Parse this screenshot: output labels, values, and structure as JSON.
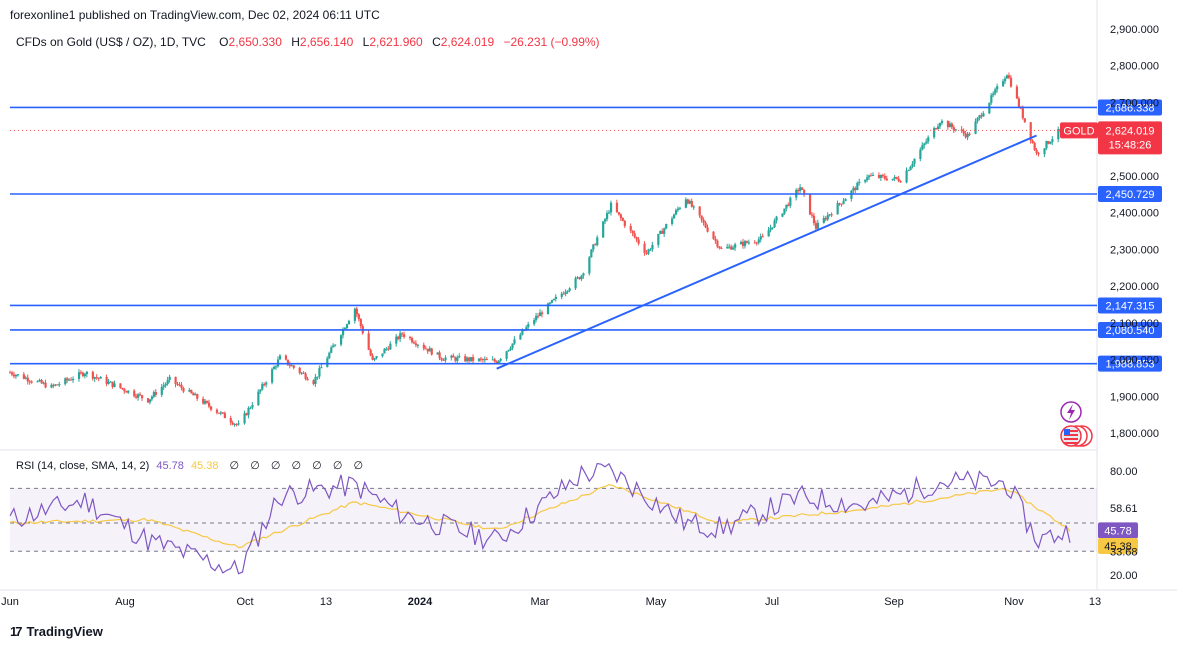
{
  "header": {
    "publisher_caption": "forexonline1 published on TradingView.com, Dec 02, 2024 06:11 UTC"
  },
  "legend": {
    "symbol_info": "CFDs on Gold (US$ / OZ), 1D, TVC",
    "open_label": "O",
    "open_value": "2,650.330",
    "high_label": "H",
    "high_value": "2,656.140",
    "low_label": "L",
    "low_value": "2,621.960",
    "close_label": "C",
    "close_value": "2,624.019",
    "change_value": "−26.231 (−0.99%)"
  },
  "rsi_legend": {
    "label": "RSI (14, close, SMA, 14, 2)",
    "rsi_value": "45.78",
    "sma_value": "45.38",
    "na_placeholders": [
      "∅",
      "∅",
      "∅",
      "∅",
      "∅",
      "∅",
      "∅"
    ]
  },
  "price_badges": {
    "symbol_tag": "GOLD",
    "last_price": "2,624.019",
    "countdown": "15:48:26"
  },
  "levels": [
    {
      "value": 2686.338,
      "label": "2,686.338"
    },
    {
      "value": 2450.729,
      "label": "2,450.729"
    },
    {
      "value": 2147.315,
      "label": "2,147.315"
    },
    {
      "value": 2080.54,
      "label": "2,080.540"
    },
    {
      "value": 1988.853,
      "label": "1,988.853"
    }
  ],
  "rsi_axis_labels": [
    "80.00",
    "58.61",
    "45.78",
    "45.38",
    "33.68",
    "20.00"
  ],
  "footer": {
    "brand": "TradingView"
  },
  "colors": {
    "up": "#26a69a",
    "down": "#ef5350",
    "level_line": "#2962ff",
    "rsi_line": "#7e57c2",
    "rsi_sma": "#f7c843",
    "last_price_badge": "#f23645"
  },
  "chart_data": [
    {
      "type": "candlestick",
      "title": "",
      "y_scale": "linear",
      "ylim": [
        1760,
        2920
      ],
      "y_ticks": [
        "2,900.000",
        "2,800.000",
        "2,700.000",
        "2,600.000",
        "2,500.000",
        "2,400.000",
        "2,300.000",
        "2,200.000",
        "2,100.000",
        "2,000.000",
        "1,900.000",
        "1,800.000"
      ],
      "x_ticks": [
        "Jun",
        "Aug",
        "Oct",
        "13",
        "2024",
        "Mar",
        "May",
        "Jul",
        "Sep",
        "Nov",
        "13"
      ],
      "series": [
        {
          "name": "",
          "x": [
            "2023-06-12",
            "2023-07-03",
            "2023-07-20",
            "2023-08-21",
            "2023-09-01",
            "2023-10-06",
            "2023-10-27",
            "2023-11-13",
            "2023-12-04",
            "2023-12-13",
            "2023-12-28",
            "2024-01-17",
            "2024-02-14",
            "2024-03-04",
            "2024-03-28",
            "2024-04-12",
            "2024-04-30",
            "2024-05-20",
            "2024-06-07",
            "2024-06-28",
            "2024-07-17",
            "2024-07-25",
            "2024-08-20",
            "2024-09-06",
            "2024-09-26",
            "2024-10-10",
            "2024-10-30",
            "2024-11-14",
            "2024-11-25",
            "2024-12-02"
          ],
          "values": [
            1965,
            1925,
            1965,
            1890,
            1945,
            1820,
            2005,
            1940,
            2140,
            1995,
            2070,
            2005,
            1995,
            2110,
            2230,
            2420,
            2290,
            2440,
            2300,
            2330,
            2470,
            2360,
            2500,
            2490,
            2650,
            2610,
            2780,
            2560,
            2620,
            2624
          ]
        }
      ],
      "trendline": {
        "from": [
          "2024-02-14",
          1975
        ],
        "to": [
          "2024-11-14",
          2610
        ]
      },
      "horizontal_levels": [
        2686.338,
        2450.729,
        2147.315,
        2080.54,
        1988.853
      ],
      "last_price": 2624.019,
      "legend": "top-left"
    },
    {
      "type": "line",
      "title": "RSI (14, close, SMA, 14, 2)",
      "ylim": [
        20,
        85
      ],
      "band": [
        33.68,
        70
      ],
      "midline": 50,
      "series": [
        {
          "name": "RSI",
          "x": [
            "2023-06-12",
            "2023-07-20",
            "2023-08-21",
            "2023-10-06",
            "2023-10-27",
            "2023-12-04",
            "2023-12-28",
            "2024-02-14",
            "2024-03-28",
            "2024-04-12",
            "2024-05-20",
            "2024-06-07",
            "2024-07-17",
            "2024-08-20",
            "2024-09-26",
            "2024-10-30",
            "2024-11-14",
            "2024-12-02"
          ],
          "values": [
            52,
            63,
            40,
            22,
            66,
            72,
            55,
            40,
            78,
            80,
            50,
            47,
            65,
            60,
            74,
            73,
            40,
            45.78
          ]
        },
        {
          "name": "SMA",
          "x": [
            "2023-06-12",
            "2023-08-21",
            "2023-10-06",
            "2023-12-04",
            "2024-02-14",
            "2024-04-12",
            "2024-06-07",
            "2024-08-20",
            "2024-10-30",
            "2024-12-02"
          ],
          "values": [
            50,
            52,
            36,
            62,
            46,
            72,
            50,
            58,
            70,
            45.38
          ]
        }
      ]
    }
  ]
}
